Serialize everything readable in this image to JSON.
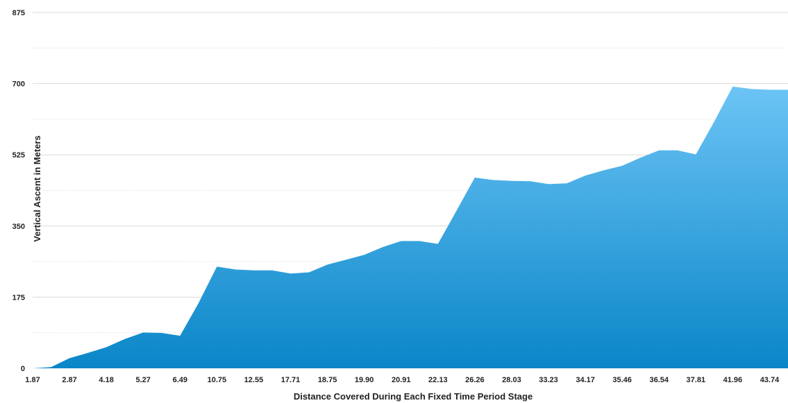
{
  "chart_data": {
    "type": "area",
    "title": "",
    "xlabel": "Distance Covered During Each Fixed Time Period Stage",
    "ylabel": "Vertical Ascent in Meters",
    "ylim": [
      0,
      875
    ],
    "y_ticks": [
      "0",
      "175",
      "350",
      "525",
      "700",
      "875"
    ],
    "grid": true,
    "legend": "none",
    "colors": {
      "fill_top": "#6cc4f5",
      "fill_bottom": "#0a86c8"
    },
    "categories": [
      "1.87",
      "",
      "2.87",
      "",
      "4.18",
      "",
      "5.27",
      "",
      "6.49",
      "",
      "10.75",
      "",
      "12.55",
      "",
      "17.71",
      "",
      "18.75",
      "",
      "19.90",
      "",
      "20.91",
      "",
      "22.13",
      "",
      "26.26",
      "",
      "28.03",
      "",
      "33.23",
      "",
      "34.17",
      "",
      "35.46",
      "",
      "36.54",
      "",
      "37.81",
      "",
      "41.96",
      "",
      "43.74",
      ""
    ],
    "series": [
      {
        "values": [
          0,
          3,
          25,
          38,
          52,
          72,
          88,
          87,
          80,
          160,
          250,
          243,
          241,
          241,
          233,
          236,
          255,
          267,
          279,
          298,
          313,
          313,
          306,
          387,
          469,
          463,
          461,
          460,
          453,
          455,
          474,
          487,
          498,
          518,
          536,
          536,
          526,
          607,
          693,
          687,
          685,
          685
        ]
      }
    ]
  }
}
